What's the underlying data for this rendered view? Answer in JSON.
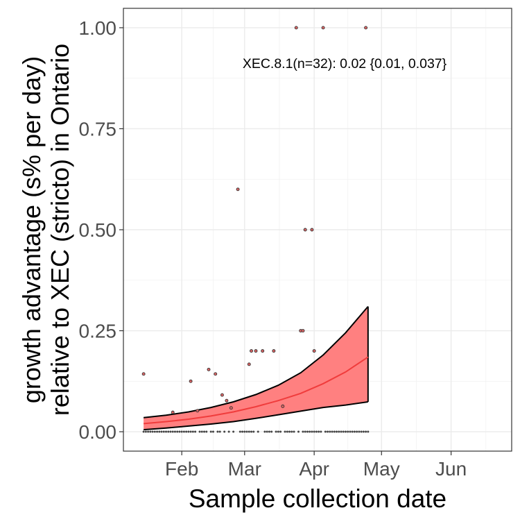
{
  "chart_data": {
    "type": "scatter",
    "title": "",
    "xlabel": "Sample collection date",
    "ylabel_line1": "growth advantage (s% per day)",
    "ylabel_line2": "relative to XEC (stricto) in Ontario",
    "annotation": "XEC.8.1(n=32): 0.02 {0.01, 0.037}",
    "x_ticks": [
      {
        "date": "2025-02-01",
        "label": "Feb"
      },
      {
        "date": "2025-03-01",
        "label": "Mar"
      },
      {
        "date": "2025-04-01",
        "label": "Apr"
      },
      {
        "date": "2025-05-01",
        "label": "May"
      },
      {
        "date": "2025-06-01",
        "label": "Jun"
      }
    ],
    "y_ticks": [
      {
        "value": 0.0,
        "label": "0.00"
      },
      {
        "value": 0.25,
        "label": "0.25"
      },
      {
        "value": 0.5,
        "label": "0.50"
      },
      {
        "value": 0.75,
        "label": "0.75"
      },
      {
        "value": 1.0,
        "label": "1.00"
      }
    ],
    "xlim": [
      "2025-01-06",
      "2025-06-28"
    ],
    "ylim": [
      -0.048,
      1.048
    ],
    "grid": true,
    "colors": {
      "ribbon": "#ff8080",
      "fit": "#f03c3c",
      "bound": "#000000",
      "point_fill": "#e06666",
      "point_stroke": "#333333"
    },
    "fit": {
      "x": [
        "2025-01-15",
        "2025-01-25",
        "2025-02-04",
        "2025-02-14",
        "2025-02-24",
        "2025-03-06",
        "2025-03-16",
        "2025-03-26",
        "2025-04-05",
        "2025-04-15",
        "2025-04-25"
      ],
      "y": [
        0.02,
        0.025,
        0.031,
        0.039,
        0.049,
        0.062,
        0.077,
        0.095,
        0.119,
        0.148,
        0.185
      ],
      "upper": [
        0.035,
        0.041,
        0.049,
        0.06,
        0.074,
        0.092,
        0.115,
        0.146,
        0.19,
        0.245,
        0.31
      ],
      "lower": [
        0.005,
        0.009,
        0.014,
        0.019,
        0.025,
        0.033,
        0.042,
        0.051,
        0.06,
        0.066,
        0.074
      ]
    },
    "points_upper": [
      {
        "date": "2025-01-15",
        "value": 0.143
      },
      {
        "date": "2025-01-28",
        "value": 0.048
      },
      {
        "date": "2025-02-05",
        "value": 0.125
      },
      {
        "date": "2025-02-08",
        "value": 0.052
      },
      {
        "date": "2025-02-13",
        "value": 0.154
      },
      {
        "date": "2025-02-16",
        "value": 0.143
      },
      {
        "date": "2025-02-19",
        "value": 0.091
      },
      {
        "date": "2025-02-21",
        "value": 0.077
      },
      {
        "date": "2025-02-23",
        "value": 0.059
      },
      {
        "date": "2025-02-26",
        "value": 0.6
      },
      {
        "date": "2025-03-03",
        "value": 0.167
      },
      {
        "date": "2025-03-04",
        "value": 0.2
      },
      {
        "date": "2025-03-06",
        "value": 0.2
      },
      {
        "date": "2025-03-09",
        "value": 0.2
      },
      {
        "date": "2025-03-14",
        "value": 0.2
      },
      {
        "date": "2025-03-18",
        "value": 0.063
      },
      {
        "date": "2025-03-24",
        "value": 1.0
      },
      {
        "date": "2025-03-26",
        "value": 0.25
      },
      {
        "date": "2025-03-27",
        "value": 0.25
      },
      {
        "date": "2025-03-28",
        "value": 0.5
      },
      {
        "date": "2025-03-31",
        "value": 0.5
      },
      {
        "date": "2025-04-01",
        "value": 0.2
      },
      {
        "date": "2025-04-05",
        "value": 1.0
      },
      {
        "date": "2025-04-24",
        "value": 1.0
      }
    ],
    "points_zero": {
      "value": 0.0,
      "dates": [
        "2025-01-15",
        "2025-01-16",
        "2025-01-17",
        "2025-01-18",
        "2025-01-19",
        "2025-01-20",
        "2025-01-21",
        "2025-01-22",
        "2025-01-23",
        "2025-01-24",
        "2025-01-25",
        "2025-01-26",
        "2025-01-27",
        "2025-01-28",
        "2025-01-29",
        "2025-01-30",
        "2025-01-31",
        "2025-02-01",
        "2025-02-02",
        "2025-02-03",
        "2025-02-04",
        "2025-02-05",
        "2025-02-06",
        "2025-02-07",
        "2025-02-09",
        "2025-02-10",
        "2025-02-11",
        "2025-02-12",
        "2025-02-14",
        "2025-02-15",
        "2025-02-17",
        "2025-02-18",
        "2025-02-20",
        "2025-02-22",
        "2025-02-24",
        "2025-02-27",
        "2025-02-28",
        "2025-03-01",
        "2025-03-02",
        "2025-03-03",
        "2025-03-04",
        "2025-03-05",
        "2025-03-07",
        "2025-03-10",
        "2025-03-11",
        "2025-03-12",
        "2025-03-13",
        "2025-03-15",
        "2025-03-16",
        "2025-03-17",
        "2025-03-19",
        "2025-03-20",
        "2025-03-21",
        "2025-03-22",
        "2025-03-23",
        "2025-03-25",
        "2025-03-27",
        "2025-03-28",
        "2025-03-29",
        "2025-03-30",
        "2025-03-31",
        "2025-04-01",
        "2025-04-02",
        "2025-04-03",
        "2025-04-04",
        "2025-04-06",
        "2025-04-07",
        "2025-04-08",
        "2025-04-09",
        "2025-04-10",
        "2025-04-11",
        "2025-04-12",
        "2025-04-13",
        "2025-04-14",
        "2025-04-15",
        "2025-04-16",
        "2025-04-17",
        "2025-04-18",
        "2025-04-19",
        "2025-04-20",
        "2025-04-21",
        "2025-04-22",
        "2025-04-23",
        "2025-04-24",
        "2025-04-25"
      ]
    }
  }
}
